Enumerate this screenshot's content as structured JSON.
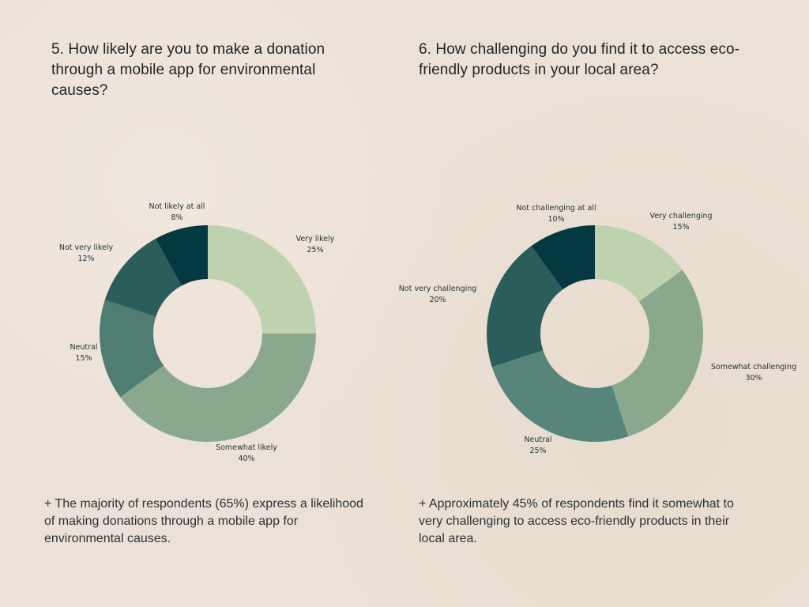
{
  "chart_data": [
    {
      "type": "pie",
      "style": "donut",
      "title": "5. How likely are you to make a donation through a mobile app for environmental causes?",
      "categories": [
        "Very likely",
        "Somewhat likely",
        "Neutral",
        "Not very likely",
        "Not likely at all"
      ],
      "values": [
        25,
        40,
        15,
        12,
        8
      ],
      "value_labels": [
        "25%",
        "40%",
        "15%",
        "12%",
        "8%"
      ],
      "colors": [
        "#bfd2b0",
        "#89a88e",
        "#4f7d71",
        "#2b5d5b",
        "#053941"
      ],
      "summary": "+ The majority of respondents (65%) express a likelihood of making donations through a mobile app for environmental causes."
    },
    {
      "type": "pie",
      "style": "donut",
      "title": "6. How challenging do you find it to access eco-friendly products in your local area?",
      "categories": [
        "Very challenging",
        "Somewhat challenging",
        "Neutral",
        "Not very challenging",
        "Not challenging at all"
      ],
      "values": [
        15,
        30,
        25,
        20,
        10
      ],
      "value_labels": [
        "15%",
        "30%",
        "25%",
        "20%",
        "10%"
      ],
      "colors": [
        "#bfd2b0",
        "#89a88e",
        "#58857a",
        "#2b5d5b",
        "#053941"
      ],
      "summary": "+ Approximately 45% of respondents find it somewhat to very challenging to access eco-friendly products in their local area."
    }
  ]
}
